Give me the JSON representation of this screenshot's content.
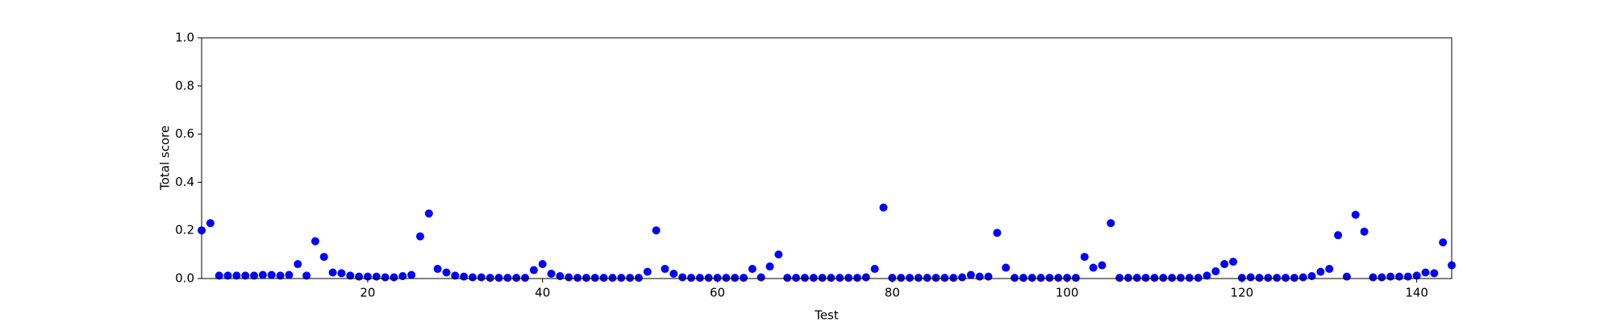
{
  "chart_data": {
    "type": "scatter",
    "x_label": "Test",
    "y_label": "Total score",
    "color": "#0000ff",
    "x": [
      1,
      2,
      3,
      4,
      5,
      6,
      7,
      8,
      9,
      10,
      11,
      12,
      13,
      14,
      15,
      16,
      17,
      18,
      19,
      20,
      21,
      22,
      23,
      24,
      25,
      26,
      27,
      28,
      29,
      30,
      31,
      32,
      33,
      34,
      35,
      36,
      37,
      38,
      39,
      40,
      41,
      42,
      43,
      44,
      45,
      46,
      47,
      48,
      49,
      50,
      51,
      52,
      53,
      54,
      55,
      56,
      57,
      58,
      59,
      60,
      61,
      62,
      63,
      64,
      65,
      66,
      67,
      68,
      69,
      70,
      71,
      72,
      73,
      74,
      75,
      76,
      77,
      78,
      79,
      80,
      81,
      82,
      83,
      84,
      85,
      86,
      87,
      88,
      89,
      90,
      91,
      92,
      93,
      94,
      95,
      96,
      97,
      98,
      99,
      100,
      101,
      102,
      103,
      104,
      105,
      106,
      107,
      108,
      109,
      110,
      111,
      112,
      113,
      114,
      115,
      116,
      117,
      118,
      119,
      120,
      121,
      122,
      123,
      124,
      125,
      126,
      127,
      128,
      129,
      130,
      131,
      132,
      133,
      134,
      135,
      136,
      137,
      138,
      139,
      140,
      141,
      142,
      143,
      144
    ],
    "values": [
      0.2,
      0.23,
      0.012,
      0.012,
      0.012,
      0.012,
      0.012,
      0.015,
      0.015,
      0.012,
      0.015,
      0.06,
      0.012,
      0.155,
      0.09,
      0.025,
      0.022,
      0.012,
      0.008,
      0.008,
      0.008,
      0.005,
      0.005,
      0.01,
      0.015,
      0.175,
      0.27,
      0.04,
      0.025,
      0.012,
      0.008,
      0.005,
      0.005,
      0.003,
      0.003,
      0.003,
      0.003,
      0.003,
      0.035,
      0.06,
      0.02,
      0.01,
      0.005,
      0.003,
      0.003,
      0.003,
      0.003,
      0.003,
      0.003,
      0.003,
      0.003,
      0.028,
      0.2,
      0.04,
      0.02,
      0.005,
      0.003,
      0.003,
      0.003,
      0.003,
      0.003,
      0.003,
      0.003,
      0.04,
      0.005,
      0.05,
      0.1,
      0.003,
      0.003,
      0.003,
      0.003,
      0.003,
      0.003,
      0.003,
      0.003,
      0.003,
      0.005,
      0.04,
      0.295,
      0.003,
      0.003,
      0.003,
      0.003,
      0.003,
      0.003,
      0.003,
      0.003,
      0.005,
      0.015,
      0.008,
      0.008,
      0.19,
      0.045,
      0.003,
      0.003,
      0.003,
      0.003,
      0.003,
      0.003,
      0.003,
      0.003,
      0.09,
      0.045,
      0.055,
      0.23,
      0.003,
      0.003,
      0.003,
      0.003,
      0.003,
      0.003,
      0.003,
      0.003,
      0.003,
      0.003,
      0.012,
      0.03,
      0.06,
      0.07,
      0.003,
      0.005,
      0.003,
      0.003,
      0.003,
      0.003,
      0.003,
      0.005,
      0.01,
      0.028,
      0.04,
      0.18,
      0.008,
      0.265,
      0.195,
      0.005,
      0.005,
      0.008,
      0.008,
      0.008,
      0.012,
      0.025,
      0.022,
      0.15,
      0.055
    ],
    "xlim": [
      1,
      144
    ],
    "xticks": [
      20,
      40,
      60,
      80,
      100,
      120,
      140
    ],
    "ylim": [
      0,
      1
    ],
    "yticks": [
      {
        "value": 0,
        "label": "0.0"
      },
      0.2,
      0.4,
      0.6,
      0.8,
      {
        "value": 1,
        "label": "1.0"
      }
    ],
    "grid": false
  }
}
